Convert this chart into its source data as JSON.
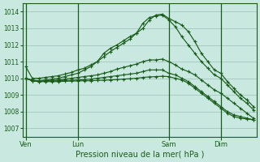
{
  "background_color": "#c8e8e0",
  "grid_color": "#a8ccc4",
  "line_color": "#1a5c1a",
  "xlabel": "Pression niveau de la mer( hPa )",
  "ylim": [
    1006.5,
    1014.5
  ],
  "yticks": [
    1007,
    1008,
    1009,
    1010,
    1011,
    1012,
    1013,
    1014
  ],
  "xtick_labels": [
    "Ven",
    "Lun",
    "Sam",
    "Dim"
  ],
  "xtick_positions": [
    0,
    8,
    22,
    30
  ],
  "vline_positions": [
    8,
    22,
    30
  ],
  "num_points": 36,
  "series": [
    {
      "x": [
        0,
        1,
        2,
        3,
        4,
        5,
        6,
        7,
        8,
        9,
        10,
        11,
        12,
        13,
        14,
        15,
        16,
        17,
        18,
        19,
        20,
        21,
        22,
        23,
        24,
        25,
        26,
        27,
        28,
        29,
        30,
        31,
        32,
        33,
        34,
        35
      ],
      "y": [
        1010.7,
        1010.0,
        1010.0,
        1010.05,
        1010.1,
        1010.15,
        1010.25,
        1010.35,
        1010.5,
        1010.6,
        1010.8,
        1011.0,
        1011.5,
        1011.8,
        1012.0,
        1012.25,
        1012.5,
        1012.7,
        1013.0,
        1013.5,
        1013.8,
        1013.85,
        1013.6,
        1013.4,
        1013.2,
        1012.8,
        1012.2,
        1011.5,
        1011.0,
        1010.5,
        1010.3,
        1009.8,
        1009.4,
        1009.0,
        1008.7,
        1008.3
      ]
    },
    {
      "x": [
        0,
        1,
        2,
        3,
        4,
        5,
        6,
        7,
        8,
        9,
        10,
        11,
        12,
        13,
        14,
        15,
        16,
        17,
        18,
        19,
        20,
        21,
        22,
        23,
        24,
        25,
        26,
        27,
        28,
        29,
        30,
        31,
        32,
        33,
        34,
        35
      ],
      "y": [
        1010.0,
        1009.9,
        1009.85,
        1009.9,
        1009.95,
        1010.0,
        1010.1,
        1010.2,
        1010.3,
        1010.5,
        1010.7,
        1011.0,
        1011.3,
        1011.6,
        1011.85,
        1012.1,
        1012.35,
        1012.7,
        1013.3,
        1013.65,
        1013.75,
        1013.8,
        1013.5,
        1013.1,
        1012.5,
        1012.0,
        1011.5,
        1011.0,
        1010.6,
        1010.2,
        1010.0,
        1009.6,
        1009.2,
        1008.8,
        1008.5,
        1008.1
      ]
    },
    {
      "x": [
        0,
        1,
        2,
        3,
        4,
        5,
        6,
        7,
        8,
        9,
        10,
        11,
        12,
        13,
        14,
        15,
        16,
        17,
        18,
        19,
        20,
        21,
        22,
        23,
        24,
        25,
        26,
        27,
        28,
        29,
        30,
        31,
        32,
        33,
        34,
        35
      ],
      "y": [
        1010.0,
        1009.85,
        1009.82,
        1009.85,
        1009.87,
        1009.9,
        1009.95,
        1010.0,
        1010.05,
        1010.1,
        1010.15,
        1010.2,
        1010.3,
        1010.4,
        1010.55,
        1010.65,
        1010.75,
        1010.85,
        1011.0,
        1011.1,
        1011.1,
        1011.15,
        1011.0,
        1010.8,
        1010.55,
        1010.4,
        1010.2,
        1009.9,
        1009.6,
        1009.3,
        1009.1,
        1008.8,
        1008.5,
        1008.2,
        1007.9,
        1007.6
      ]
    },
    {
      "x": [
        0,
        1,
        2,
        3,
        4,
        5,
        6,
        7,
        8,
        9,
        10,
        11,
        12,
        13,
        14,
        15,
        16,
        17,
        18,
        19,
        20,
        21,
        22,
        23,
        24,
        25,
        26,
        27,
        28,
        29,
        30,
        31,
        32,
        33,
        34,
        35
      ],
      "y": [
        1010.0,
        1009.85,
        1009.8,
        1009.82,
        1009.83,
        1009.85,
        1009.87,
        1009.88,
        1009.9,
        1009.92,
        1009.95,
        1010.0,
        1010.05,
        1010.1,
        1010.15,
        1010.2,
        1010.25,
        1010.3,
        1010.4,
        1010.5,
        1010.5,
        1010.5,
        1010.3,
        1010.2,
        1010.0,
        1009.8,
        1009.5,
        1009.2,
        1008.9,
        1008.6,
        1008.3,
        1008.0,
        1007.8,
        1007.7,
        1007.6,
        1007.5
      ]
    },
    {
      "x": [
        0,
        1,
        2,
        3,
        4,
        5,
        6,
        7,
        8,
        9,
        10,
        11,
        12,
        13,
        14,
        15,
        16,
        17,
        18,
        19,
        20,
        21,
        22,
        23,
        24,
        25,
        26,
        27,
        28,
        29,
        30,
        31,
        32,
        33,
        34,
        35
      ],
      "y": [
        1010.0,
        1009.85,
        1009.8,
        1009.8,
        1009.8,
        1009.8,
        1009.82,
        1009.83,
        1009.84,
        1009.85,
        1009.85,
        1009.87,
        1009.88,
        1009.9,
        1009.92,
        1009.95,
        1009.97,
        1010.0,
        1010.05,
        1010.08,
        1010.1,
        1010.12,
        1010.1,
        1010.0,
        1009.9,
        1009.7,
        1009.4,
        1009.1,
        1008.8,
        1008.5,
        1008.2,
        1007.9,
        1007.7,
        1007.6,
        1007.55,
        1007.5
      ]
    }
  ]
}
